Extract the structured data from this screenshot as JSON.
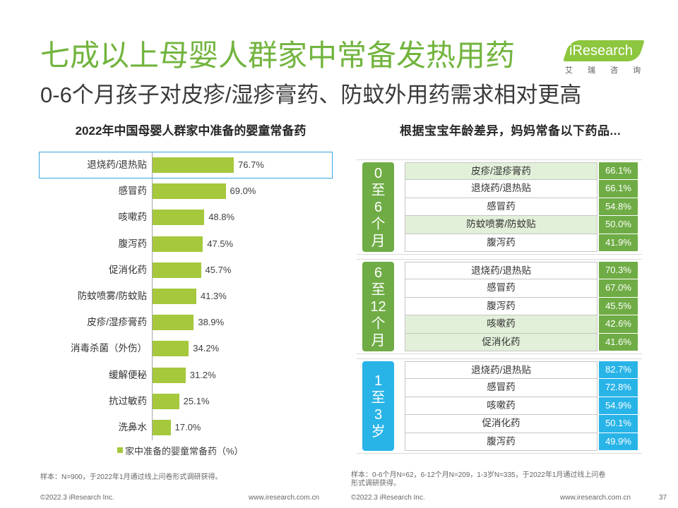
{
  "header": {
    "title": "七成以上母婴人群家中常备发热用药",
    "subtitle": "0-6个月孩子对皮疹/湿疹膏药、防蚊外用药需求相对更高"
  },
  "logo": {
    "brand": "iResearch",
    "tagline": "艾 瑞 咨 询"
  },
  "colors": {
    "title": "#72b43e",
    "logo": "#8dc63f",
    "bar": "#a6c83c",
    "green_light": "#e2efd9",
    "highlight_border": "#3aa5dc"
  },
  "chart_data": [
    {
      "type": "bar",
      "orientation": "horizontal",
      "title": "2022年中国母婴人群家中准备的婴童常备药",
      "categories": [
        "退烧药/退热贴",
        "感冒药",
        "咳嗽药",
        "腹泻药",
        "促消化药",
        "防蚊喷雾/防蚊贴",
        "皮疹/湿疹膏药",
        "消毒杀菌（外伤）",
        "缓解便秘",
        "抗过敏药",
        "洗鼻水"
      ],
      "series": [
        {
          "name": "家中准备的婴童常备药（%）",
          "values": [
            76.7,
            69.0,
            48.8,
            47.5,
            45.7,
            41.3,
            38.9,
            34.2,
            31.2,
            25.1,
            17.0
          ]
        }
      ],
      "value_suffix": "%",
      "highlight": [
        0
      ],
      "legend_position": "bottom",
      "grid": false
    },
    {
      "type": "table",
      "title": "根据宝宝年龄差异，妈妈常备以下药品...",
      "value_suffix": "%",
      "groups": [
        {
          "label_lines": [
            "0",
            "至",
            "6",
            "个",
            "月"
          ],
          "color": "#6fac45",
          "rows": [
            {
              "item": "皮疹/湿疹膏药",
              "value": 66.1,
              "highlight": true
            },
            {
              "item": "退烧药/退热贴",
              "value": 66.1,
              "highlight": false
            },
            {
              "item": "感冒药",
              "value": 54.8,
              "highlight": false
            },
            {
              "item": "防蚊喷雾/防蚊贴",
              "value": 50.0,
              "highlight": true
            },
            {
              "item": "腹泻药",
              "value": 41.9,
              "highlight": false
            }
          ]
        },
        {
          "label_lines": [
            "6",
            "至",
            "12",
            "个",
            "月"
          ],
          "color": "#6fac45",
          "rows": [
            {
              "item": "退烧药/退热贴",
              "value": 70.3,
              "highlight": false
            },
            {
              "item": "感冒药",
              "value": 67.0,
              "highlight": false
            },
            {
              "item": "腹泻药",
              "value": 45.5,
              "highlight": false
            },
            {
              "item": "咳嗽药",
              "value": 42.6,
              "highlight": true
            },
            {
              "item": "促消化药",
              "value": 41.6,
              "highlight": true
            }
          ]
        },
        {
          "label_lines": [
            "1",
            "至",
            "3",
            "岁"
          ],
          "color": "#29b4e8",
          "rows": [
            {
              "item": "退烧药/退热贴",
              "value": 82.7,
              "highlight": false
            },
            {
              "item": "感冒药",
              "value": 72.8,
              "highlight": false
            },
            {
              "item": "咳嗽药",
              "value": 54.9,
              "highlight": false
            },
            {
              "item": "促消化药",
              "value": 50.1,
              "highlight": false
            },
            {
              "item": "腹泻药",
              "value": 49.9,
              "highlight": false
            }
          ]
        }
      ]
    }
  ],
  "footnotes": {
    "left": "样本：N=900，于2022年1月通过线上问卷形式调研获得。",
    "right": [
      "样本：0-6个月N=62，6-12个月N=209，1-3岁N=335，于2022年1月通过线上问卷",
      "形式调研获得。"
    ]
  },
  "footer": {
    "left_copyright": "©2022.3 iResearch Inc.",
    "left_url": "www.iresearch.com.cn",
    "right_copyright": "©2022.3 iResearch Inc.",
    "right_url": "www.iresearch.com.cn",
    "page_number": "37"
  }
}
